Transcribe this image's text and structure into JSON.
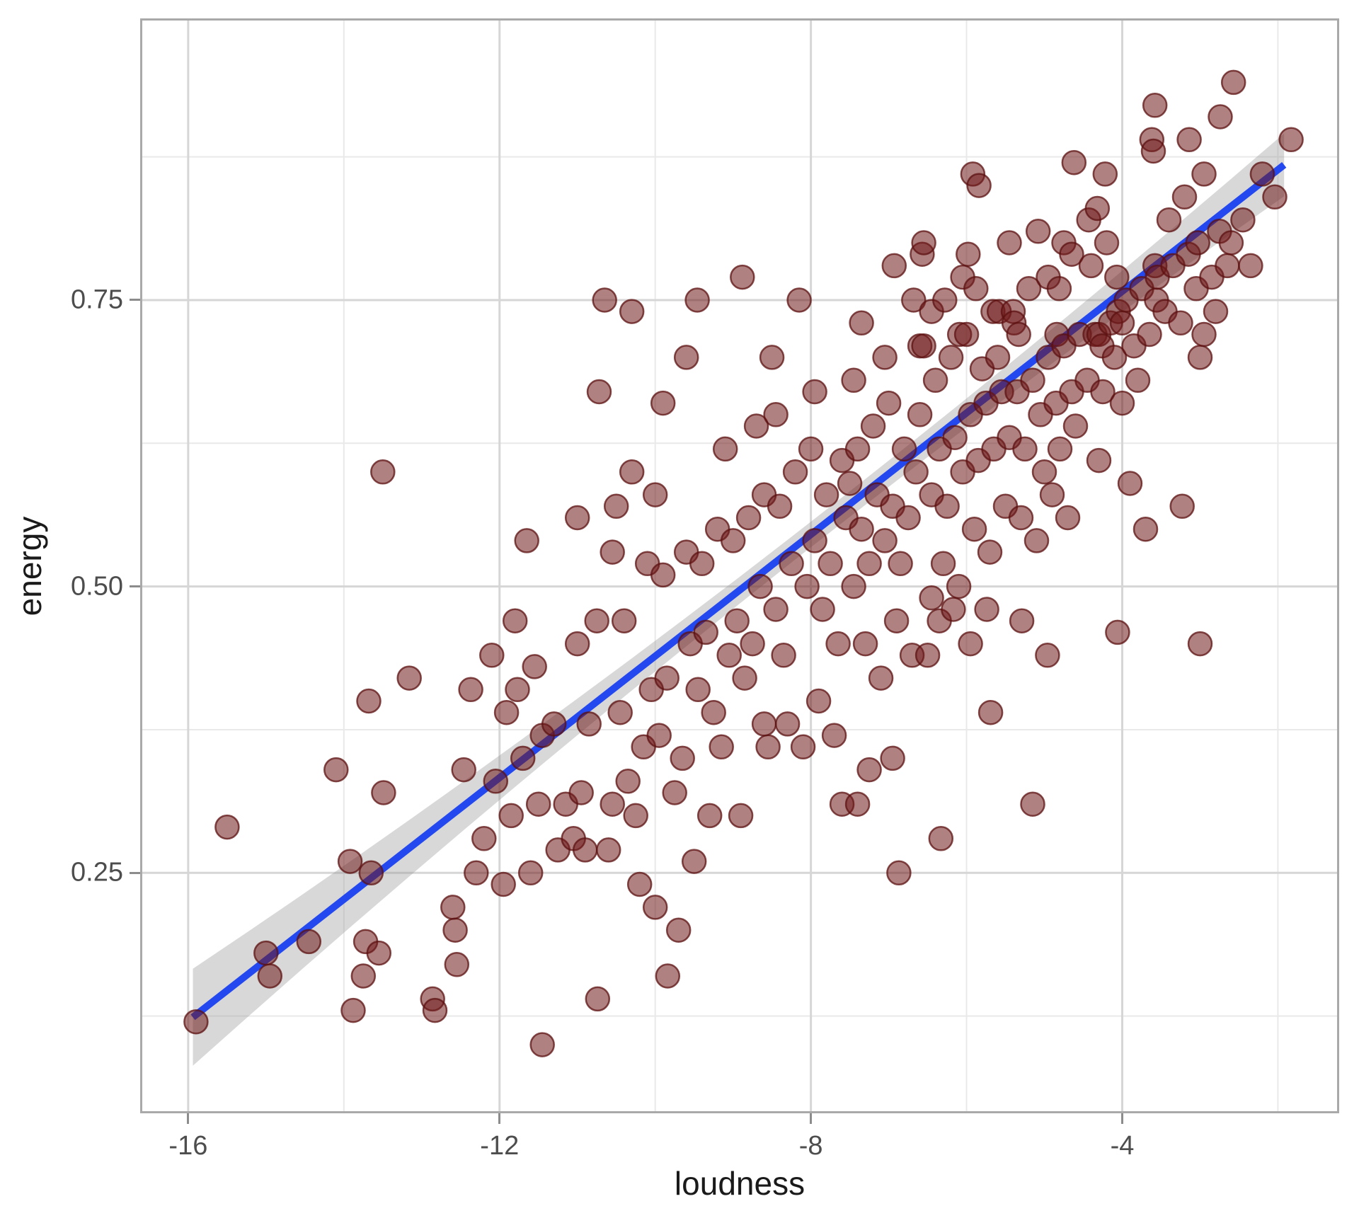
{
  "chart_data": {
    "type": "scatter",
    "title": "",
    "xlabel": "loudness",
    "ylabel": "energy",
    "x_ticks": [
      {
        "v": -16,
        "label": "-16"
      },
      {
        "v": -12,
        "label": "-12"
      },
      {
        "v": -8,
        "label": "-8"
      },
      {
        "v": -4,
        "label": "-4"
      }
    ],
    "y_ticks": [
      {
        "v": 0.75,
        "label": "0.75"
      },
      {
        "v": 0.5,
        "label": "0.50"
      },
      {
        "v": 0.25,
        "label": "0.25"
      }
    ],
    "x_minor_ticks": [
      -14,
      -10,
      -6,
      -2
    ],
    "y_minor_ticks": [
      0.875,
      0.625,
      0.375,
      0.125
    ],
    "xlim": [
      -16.59,
      -1.24
    ],
    "ylim": [
      0.042,
      0.994
    ],
    "grid": true,
    "legend": false,
    "point_radius_px": 16.5,
    "trend_line": {
      "kind": "lm-smooth",
      "x_start": -15.94,
      "y_start": 0.124,
      "x_end": -1.92,
      "y_end": 0.868,
      "ci_band": true
    },
    "colors": {
      "point_fill": "#701a1a",
      "point_fill_opacity": 0.55,
      "point_stroke": "#5c1010",
      "point_stroke_opacity": 0.75,
      "line": "#2348f0",
      "band": "#999999",
      "band_opacity": 0.38,
      "grid_major": "#d6d6d6",
      "grid_minor": "#e9e9e9",
      "panel_border": "#a9a9a9",
      "tick_mark": "#8c8c8c",
      "tick_label": "#4d4d4d",
      "axis_title": "#1a1a1a",
      "background": "#ffffff"
    },
    "points": [
      [
        -15.9,
        0.12
      ],
      [
        -15.5,
        0.29
      ],
      [
        -15.0,
        0.18
      ],
      [
        -14.95,
        0.16
      ],
      [
        -14.45,
        0.19
      ],
      [
        -14.1,
        0.34
      ],
      [
        -13.92,
        0.26
      ],
      [
        -13.88,
        0.13
      ],
      [
        -13.75,
        0.16
      ],
      [
        -13.72,
        0.19
      ],
      [
        -13.68,
        0.4
      ],
      [
        -13.65,
        0.25
      ],
      [
        -13.55,
        0.18
      ],
      [
        -13.5,
        0.6
      ],
      [
        -13.49,
        0.32
      ],
      [
        -13.16,
        0.42
      ],
      [
        -12.86,
        0.14
      ],
      [
        -12.83,
        0.13
      ],
      [
        -12.6,
        0.22
      ],
      [
        -12.57,
        0.2
      ],
      [
        -12.55,
        0.17
      ],
      [
        -12.46,
        0.34
      ],
      [
        -12.37,
        0.41
      ],
      [
        -12.3,
        0.25
      ],
      [
        -12.2,
        0.28
      ],
      [
        -12.1,
        0.44
      ],
      [
        -12.05,
        0.33
      ],
      [
        -11.95,
        0.24
      ],
      [
        -11.91,
        0.39
      ],
      [
        -11.85,
        0.3
      ],
      [
        -11.8,
        0.47
      ],
      [
        -11.77,
        0.41
      ],
      [
        -11.7,
        0.35
      ],
      [
        -11.65,
        0.54
      ],
      [
        -11.6,
        0.25
      ],
      [
        -11.55,
        0.43
      ],
      [
        -11.5,
        0.31
      ],
      [
        -11.45,
        0.37
      ],
      [
        -11.45,
        0.1
      ],
      [
        -11.3,
        0.38
      ],
      [
        -11.25,
        0.27
      ],
      [
        -11.15,
        0.31
      ],
      [
        -11.05,
        0.28
      ],
      [
        -11.0,
        0.45
      ],
      [
        -11.0,
        0.56
      ],
      [
        -10.95,
        0.32
      ],
      [
        -10.9,
        0.27
      ],
      [
        -10.85,
        0.38
      ],
      [
        -10.75,
        0.47
      ],
      [
        -10.74,
        0.14
      ],
      [
        -10.72,
        0.67
      ],
      [
        -10.65,
        0.75
      ],
      [
        -10.6,
        0.27
      ],
      [
        -10.55,
        0.31
      ],
      [
        -10.55,
        0.53
      ],
      [
        -10.5,
        0.57
      ],
      [
        -10.45,
        0.39
      ],
      [
        -10.4,
        0.47
      ],
      [
        -10.35,
        0.33
      ],
      [
        -10.3,
        0.74
      ],
      [
        -10.3,
        0.6
      ],
      [
        -10.25,
        0.3
      ],
      [
        -10.2,
        0.24
      ],
      [
        -10.15,
        0.36
      ],
      [
        -10.1,
        0.52
      ],
      [
        -10.05,
        0.41
      ],
      [
        -10.0,
        0.22
      ],
      [
        -10.0,
        0.58
      ],
      [
        -9.95,
        0.37
      ],
      [
        -9.9,
        0.66
      ],
      [
        -9.9,
        0.51
      ],
      [
        -9.85,
        0.42
      ],
      [
        -9.84,
        0.16
      ],
      [
        -9.75,
        0.32
      ],
      [
        -9.7,
        0.2
      ],
      [
        -9.65,
        0.35
      ],
      [
        -9.6,
        0.7
      ],
      [
        -9.6,
        0.53
      ],
      [
        -9.55,
        0.45
      ],
      [
        -9.5,
        0.26
      ],
      [
        -9.46,
        0.75
      ],
      [
        -9.45,
        0.41
      ],
      [
        -9.4,
        0.52
      ],
      [
        -9.35,
        0.46
      ],
      [
        -9.3,
        0.3
      ],
      [
        -9.25,
        0.39
      ],
      [
        -9.2,
        0.55
      ],
      [
        -9.15,
        0.36
      ],
      [
        -9.1,
        0.62
      ],
      [
        -9.05,
        0.44
      ],
      [
        -9.0,
        0.54
      ],
      [
        -8.95,
        0.47
      ],
      [
        -8.9,
        0.3
      ],
      [
        -8.88,
        0.77
      ],
      [
        -8.85,
        0.42
      ],
      [
        -8.8,
        0.56
      ],
      [
        -8.75,
        0.45
      ],
      [
        -8.7,
        0.64
      ],
      [
        -8.65,
        0.5
      ],
      [
        -8.6,
        0.38
      ],
      [
        -8.6,
        0.58
      ],
      [
        -8.55,
        0.36
      ],
      [
        -8.5,
        0.7
      ],
      [
        -8.45,
        0.48
      ],
      [
        -8.45,
        0.65
      ],
      [
        -8.4,
        0.57
      ],
      [
        -8.35,
        0.44
      ],
      [
        -8.3,
        0.38
      ],
      [
        -8.25,
        0.52
      ],
      [
        -8.2,
        0.6
      ],
      [
        -8.15,
        0.75
      ],
      [
        -8.1,
        0.36
      ],
      [
        -8.05,
        0.5
      ],
      [
        -8.0,
        0.62
      ],
      [
        -7.95,
        0.54
      ],
      [
        -7.95,
        0.67
      ],
      [
        -7.9,
        0.4
      ],
      [
        -7.85,
        0.48
      ],
      [
        -7.8,
        0.58
      ],
      [
        -7.75,
        0.52
      ],
      [
        -7.7,
        0.37
      ],
      [
        -7.65,
        0.45
      ],
      [
        -7.6,
        0.61
      ],
      [
        -7.6,
        0.31
      ],
      [
        -7.55,
        0.56
      ],
      [
        -7.5,
        0.59
      ],
      [
        -7.45,
        0.5
      ],
      [
        -7.45,
        0.68
      ],
      [
        -7.4,
        0.31
      ],
      [
        -7.4,
        0.62
      ],
      [
        -7.35,
        0.55
      ],
      [
        -7.35,
        0.73
      ],
      [
        -7.3,
        0.45
      ],
      [
        -7.25,
        0.52
      ],
      [
        -7.25,
        0.34
      ],
      [
        -7.2,
        0.64
      ],
      [
        -7.15,
        0.58
      ],
      [
        -7.1,
        0.42
      ],
      [
        -7.05,
        0.54
      ],
      [
        -7.05,
        0.7
      ],
      [
        -7.0,
        0.66
      ],
      [
        -6.95,
        0.57
      ],
      [
        -6.95,
        0.35
      ],
      [
        -6.93,
        0.78
      ],
      [
        -6.9,
        0.47
      ],
      [
        -6.87,
        0.25
      ],
      [
        -6.85,
        0.52
      ],
      [
        -6.8,
        0.62
      ],
      [
        -6.75,
        0.56
      ],
      [
        -6.7,
        0.44
      ],
      [
        -6.68,
        0.75
      ],
      [
        -6.65,
        0.6
      ],
      [
        -6.6,
        0.65
      ],
      [
        -6.6,
        0.71
      ],
      [
        -6.57,
        0.79
      ],
      [
        -6.55,
        0.8
      ],
      [
        -6.55,
        0.71
      ],
      [
        -6.5,
        0.44
      ],
      [
        -6.45,
        0.58
      ],
      [
        -6.45,
        0.49
      ],
      [
        -6.45,
        0.74
      ],
      [
        -6.4,
        0.68
      ],
      [
        -6.35,
        0.62
      ],
      [
        -6.35,
        0.47
      ],
      [
        -6.33,
        0.28
      ],
      [
        -6.3,
        0.52
      ],
      [
        -6.28,
        0.75
      ],
      [
        -6.25,
        0.57
      ],
      [
        -6.2,
        0.7
      ],
      [
        -6.17,
        0.48
      ],
      [
        -6.15,
        0.63
      ],
      [
        -6.1,
        0.5
      ],
      [
        -6.09,
        0.72
      ],
      [
        -6.05,
        0.6
      ],
      [
        -6.05,
        0.77
      ],
      [
        -6.0,
        0.72
      ],
      [
        -5.98,
        0.79
      ],
      [
        -5.95,
        0.65
      ],
      [
        -5.95,
        0.45
      ],
      [
        -5.92,
        0.86
      ],
      [
        -5.9,
        0.55
      ],
      [
        -5.88,
        0.76
      ],
      [
        -5.85,
        0.61
      ],
      [
        -5.84,
        0.85
      ],
      [
        -5.8,
        0.69
      ],
      [
        -5.75,
        0.66
      ],
      [
        -5.74,
        0.48
      ],
      [
        -5.7,
        0.53
      ],
      [
        -5.69,
        0.39
      ],
      [
        -5.66,
        0.74
      ],
      [
        -5.65,
        0.62
      ],
      [
        -5.6,
        0.7
      ],
      [
        -5.58,
        0.74
      ],
      [
        -5.55,
        0.67
      ],
      [
        -5.5,
        0.57
      ],
      [
        -5.45,
        0.63
      ],
      [
        -5.45,
        0.8
      ],
      [
        -5.4,
        0.74
      ],
      [
        -5.39,
        0.73
      ],
      [
        -5.35,
        0.67
      ],
      [
        -5.33,
        0.72
      ],
      [
        -5.3,
        0.56
      ],
      [
        -5.29,
        0.47
      ],
      [
        -5.25,
        0.62
      ],
      [
        -5.2,
        0.76
      ],
      [
        -5.15,
        0.68
      ],
      [
        -5.15,
        0.31
      ],
      [
        -5.1,
        0.54
      ],
      [
        -5.08,
        0.81
      ],
      [
        -5.05,
        0.65
      ],
      [
        -5.0,
        0.6
      ],
      [
        -4.96,
        0.44
      ],
      [
        -4.95,
        0.7
      ],
      [
        -4.95,
        0.77
      ],
      [
        -4.9,
        0.58
      ],
      [
        -4.85,
        0.66
      ],
      [
        -4.84,
        0.72
      ],
      [
        -4.81,
        0.76
      ],
      [
        -4.8,
        0.62
      ],
      [
        -4.75,
        0.71
      ],
      [
        -4.75,
        0.8
      ],
      [
        -4.7,
        0.56
      ],
      [
        -4.65,
        0.67
      ],
      [
        -4.65,
        0.79
      ],
      [
        -4.62,
        0.87
      ],
      [
        -4.6,
        0.64
      ],
      [
        -4.55,
        0.72
      ],
      [
        -4.45,
        0.68
      ],
      [
        -4.43,
        0.82
      ],
      [
        -4.4,
        0.78
      ],
      [
        -4.35,
        0.72
      ],
      [
        -4.32,
        0.83
      ],
      [
        -4.3,
        0.61
      ],
      [
        -4.3,
        0.72
      ],
      [
        -4.26,
        0.71
      ],
      [
        -4.25,
        0.67
      ],
      [
        -4.22,
        0.86
      ],
      [
        -4.2,
        0.8
      ],
      [
        -4.15,
        0.73
      ],
      [
        -4.1,
        0.7
      ],
      [
        -4.07,
        0.77
      ],
      [
        -4.06,
        0.46
      ],
      [
        -4.05,
        0.74
      ],
      [
        -4.0,
        0.66
      ],
      [
        -4.0,
        0.73
      ],
      [
        -3.95,
        0.75
      ],
      [
        -3.9,
        0.59
      ],
      [
        -3.85,
        0.71
      ],
      [
        -3.8,
        0.68
      ],
      [
        -3.75,
        0.76
      ],
      [
        -3.7,
        0.55
      ],
      [
        -3.65,
        0.72
      ],
      [
        -3.62,
        0.89
      ],
      [
        -3.6,
        0.88
      ],
      [
        -3.58,
        0.92
      ],
      [
        -3.58,
        0.78
      ],
      [
        -3.56,
        0.75
      ],
      [
        -3.55,
        0.77
      ],
      [
        -3.45,
        0.74
      ],
      [
        -3.4,
        0.82
      ],
      [
        -3.35,
        0.78
      ],
      [
        -3.25,
        0.73
      ],
      [
        -3.23,
        0.57
      ],
      [
        -3.2,
        0.84
      ],
      [
        -3.15,
        0.79
      ],
      [
        -3.14,
        0.89
      ],
      [
        -3.05,
        0.76
      ],
      [
        -3.03,
        0.8
      ],
      [
        -3.0,
        0.45
      ],
      [
        -3.0,
        0.7
      ],
      [
        -2.95,
        0.86
      ],
      [
        -2.95,
        0.72
      ],
      [
        -2.85,
        0.77
      ],
      [
        -2.8,
        0.74
      ],
      [
        -2.75,
        0.81
      ],
      [
        -2.74,
        0.91
      ],
      [
        -2.65,
        0.78
      ],
      [
        -2.6,
        0.8
      ],
      [
        -2.57,
        0.94
      ],
      [
        -2.45,
        0.82
      ],
      [
        -2.35,
        0.78
      ],
      [
        -2.2,
        0.86
      ],
      [
        -2.04,
        0.84
      ],
      [
        -1.83,
        0.89
      ]
    ]
  }
}
